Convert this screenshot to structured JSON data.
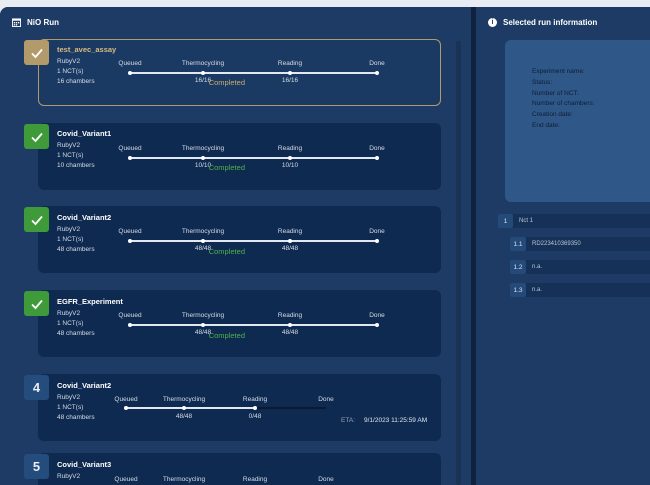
{
  "left_panel": {
    "title": "NiO Run"
  },
  "right_panel": {
    "title": "Selected run information",
    "fields": [
      "Experiment name:",
      "Status:",
      "Number of NCT:",
      "Number of chambers:",
      "Creation date:",
      "End date:"
    ],
    "nct": {
      "index": "1",
      "label": "Nct 1"
    },
    "sub_items": [
      {
        "index": "1.1",
        "label": "RD223410369350"
      },
      {
        "index": "1.2",
        "label": "n.a."
      },
      {
        "index": "1.3",
        "label": "n.a."
      }
    ]
  },
  "stages": [
    "Queued",
    "Thermocycling",
    "Reading",
    "Done"
  ],
  "runs": [
    {
      "badge": "check",
      "name": "test_avec_assay",
      "device": "RubyV2",
      "nct": "1 NCT(s)",
      "chambers": "16 chambers",
      "thermo": "16/16",
      "reading": "16/16",
      "status": "Completed",
      "state": "selected"
    },
    {
      "badge": "check",
      "name": "Covid_Variant1",
      "device": "RubyV2",
      "nct": "1 NCT(s)",
      "chambers": "10 chambers",
      "thermo": "10/10",
      "reading": "10/10",
      "status": "Completed",
      "state": "completed"
    },
    {
      "badge": "check",
      "name": "Covid_Variant2",
      "device": "RubyV2",
      "nct": "1 NCT(s)",
      "chambers": "48 chambers",
      "thermo": "48/48",
      "reading": "48/48",
      "status": "Completed",
      "state": "completed"
    },
    {
      "badge": "check",
      "name": "EGFR_Experiment",
      "device": "RubyV2",
      "nct": "1 NCT(s)",
      "chambers": "48 chambers",
      "thermo": "48/48",
      "reading": "48/48",
      "status": "Completed",
      "state": "completed"
    },
    {
      "badge": "4",
      "name": "Covid_Variant2",
      "device": "RubyV2",
      "nct": "1 NCT(s)",
      "chambers": "48 chambers",
      "thermo": "48/48",
      "reading": "0/48",
      "eta_label": "ETA:",
      "eta": "9/1/2023 11:25:59 AM",
      "state": "running"
    },
    {
      "badge": "5",
      "name": "Covid_Variant3",
      "device": "RubyV2",
      "state": "queued"
    }
  ],
  "colors": {
    "accent_gold": "#b29a6a",
    "success_green": "#3f9a3a",
    "background": "#1d3b64",
    "card": "#0f2a50"
  }
}
